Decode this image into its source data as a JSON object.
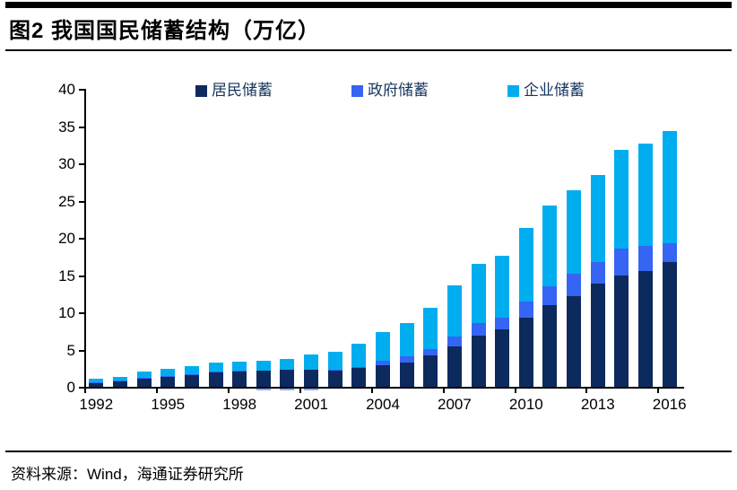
{
  "header": {
    "title": "图2  我国国民储蓄结构（万亿）"
  },
  "footer": {
    "source": "资料来源：Wind，海通证券研究所"
  },
  "colors": {
    "resident": "#0D2A5E",
    "government": "#3565F2",
    "enterprise": "#00AEEF",
    "legend_text": "#17365D",
    "axis": "#000000"
  },
  "chart_data": {
    "type": "bar",
    "stacked": true,
    "title": "我国国民储蓄结构（万亿）",
    "ylabel": "",
    "xlabel": "",
    "ylim": [
      0,
      40
    ],
    "grid": false,
    "legend_position": "top",
    "yticks": [
      0,
      5,
      10,
      15,
      20,
      25,
      30,
      35,
      40
    ],
    "xtick_labels": [
      "1992",
      "1995",
      "1998",
      "2001",
      "2004",
      "2007",
      "2010",
      "2013",
      "2016"
    ],
    "categories": [
      1992,
      1993,
      1994,
      1995,
      1996,
      1997,
      1998,
      1999,
      2000,
      2001,
      2002,
      2003,
      2004,
      2005,
      2006,
      2007,
      2008,
      2009,
      2010,
      2011,
      2012,
      2013,
      2014,
      2015,
      2016
    ],
    "series": [
      {
        "name": "居民储蓄",
        "color_key": "resident",
        "values": [
          0.6,
          0.8,
          1.1,
          1.3,
          1.6,
          1.9,
          2.1,
          2.2,
          2.3,
          2.3,
          2.2,
          2.5,
          2.9,
          3.3,
          4.2,
          5.4,
          6.9,
          7.7,
          9.3,
          11.0,
          12.2,
          13.8,
          14.9,
          15.6,
          16.7
        ]
      },
      {
        "name": "政府储蓄",
        "color_key": "government",
        "values": [
          0.05,
          0.05,
          0.1,
          0.1,
          0.1,
          0.1,
          0.05,
          -0.25,
          -0.3,
          -0.3,
          0.1,
          0.15,
          0.55,
          0.75,
          0.9,
          1.4,
          1.6,
          1.6,
          2.1,
          2.5,
          3.0,
          3.0,
          3.7,
          3.3,
          2.6
        ]
      },
      {
        "name": "企业储蓄",
        "color_key": "enterprise",
        "values": [
          0.4,
          0.5,
          0.9,
          1.0,
          1.1,
          1.2,
          1.2,
          1.25,
          1.4,
          2.0,
          2.4,
          3.15,
          3.9,
          4.5,
          5.5,
          6.8,
          8.0,
          8.3,
          9.9,
          10.8,
          11.2,
          11.6,
          13.2,
          13.7,
          15.0
        ]
      }
    ]
  }
}
